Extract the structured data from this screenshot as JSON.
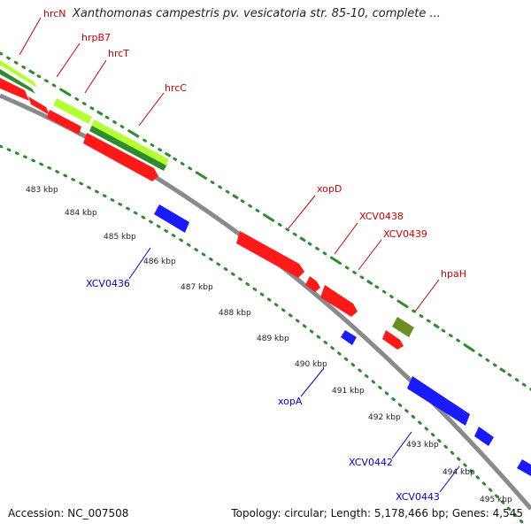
{
  "header": {
    "title": "Xanthomonas campestris pv. vesicatoria str. 85-10, complete ..."
  },
  "footer": {
    "accession": "Accession: NC_007508",
    "topology": "Topology: circular; Length: 5,178,466 bp; Genes: 4,545"
  },
  "colors": {
    "forward_label": "#cc0000",
    "reverse_label": "#0000cc",
    "gene_red": "#ff1a1a",
    "gene_blue": "#1a1aff",
    "gene_lightgreen": "#b3ff33",
    "gene_darkgreen": "#2e8b2e",
    "gene_olive": "#6b8e23",
    "backbone": "#888888",
    "ruler_dots": "#2e8b2e"
  },
  "ruler": {
    "ticks": [
      "483 kbp",
      "484 kbp",
      "485 kbp",
      "486 kbp",
      "487 kbp",
      "488 kbp",
      "489 kbp",
      "490 kbp",
      "491 kbp",
      "492 kbp",
      "493 kbp",
      "494 kbp",
      "495 kbp"
    ]
  },
  "gene_labels": [
    {
      "name": "hrcN",
      "strand": "forward"
    },
    {
      "name": "hrpB7",
      "strand": "forward"
    },
    {
      "name": "hrcT",
      "strand": "forward"
    },
    {
      "name": "hrcC",
      "strand": "forward"
    },
    {
      "name": "xopD",
      "strand": "forward"
    },
    {
      "name": "XCV0438",
      "strand": "forward"
    },
    {
      "name": "XCV0439",
      "strand": "forward"
    },
    {
      "name": "hpaH",
      "strand": "forward"
    },
    {
      "name": "XCV0436",
      "strand": "reverse"
    },
    {
      "name": "xopA",
      "strand": "reverse"
    },
    {
      "name": "XCV0442",
      "strand": "reverse"
    },
    {
      "name": "XCV0443",
      "strand": "reverse"
    }
  ]
}
